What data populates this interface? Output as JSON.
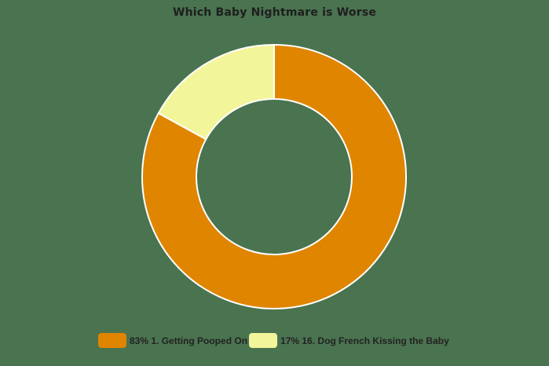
{
  "chart_data": {
    "type": "pie",
    "subtype": "donut",
    "title": "Which Baby Nightmare is Worse",
    "categories": [
      "1. Getting Pooped On",
      "16. Dog French Kissing the Baby"
    ],
    "values": [
      83,
      17
    ],
    "unit": "%",
    "colors": [
      "#e08500",
      "#f3f59a"
    ],
    "legend": {
      "position": "bottom",
      "entries": [
        "83% 1. Getting Pooped On",
        "17% 16. Dog French Kissing the Baby"
      ]
    },
    "start_angle_deg": 0,
    "direction": "clockwise",
    "background": "#4a7350"
  },
  "title": "Which Baby Nightmare is Worse",
  "legend": [
    {
      "label": "83% 1. Getting Pooped On",
      "color": "#e08500"
    },
    {
      "label": "17% 16. Dog French Kissing the Baby",
      "color": "#f3f59a"
    }
  ]
}
